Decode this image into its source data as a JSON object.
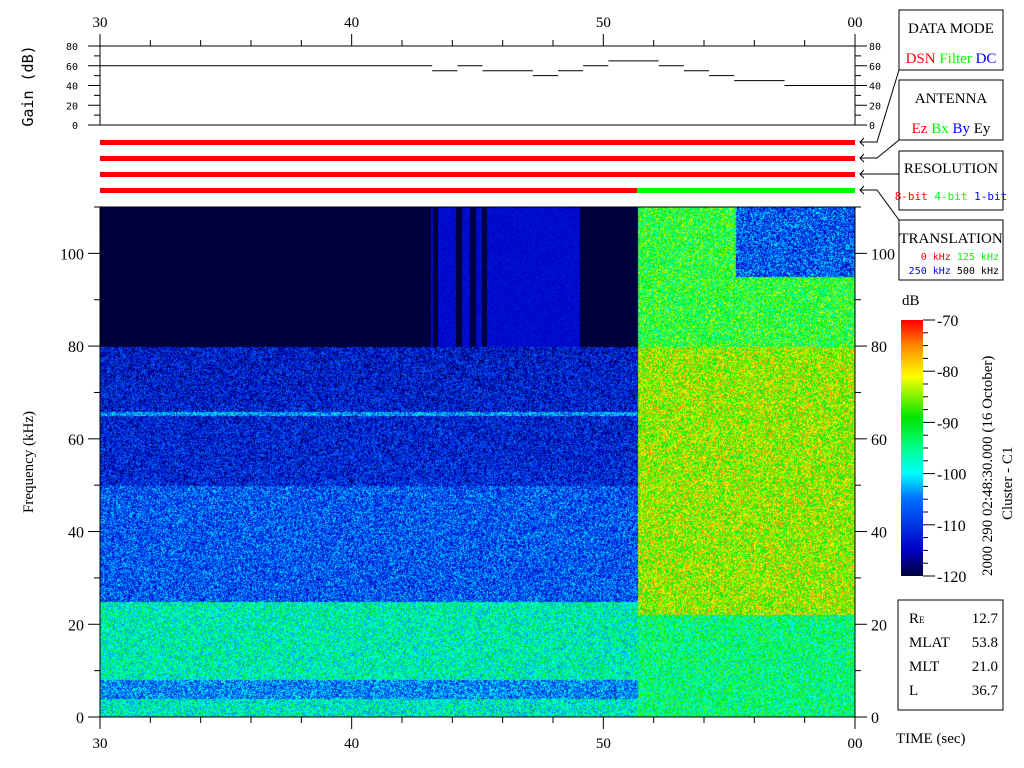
{
  "chart_data": {
    "type": "heatmap",
    "xlabel": "TIME (sec)",
    "ylabel": "Frequency (kHz)",
    "x_tick_labels": [
      "30",
      "40",
      "50",
      "00"
    ],
    "x_range": [
      30,
      60
    ],
    "ylim": [
      0,
      110
    ],
    "y_tick_labels": [
      "0",
      "20",
      "40",
      "60",
      "80",
      "100"
    ],
    "colorbar": {
      "label": "dB",
      "range": [
        -120,
        -70
      ],
      "tick_labels": [
        "-70",
        "-80",
        "-90",
        "-100",
        "-110",
        "-120"
      ],
      "colormap": "jet"
    },
    "gain_panel": {
      "ylabel": "Gain (dB)",
      "ylim": [
        0,
        80
      ],
      "y_tick_labels": [
        "0",
        "20",
        "40",
        "60",
        "80"
      ],
      "steps": [
        {
          "t0": 30,
          "t1": 43.2,
          "gain": 60
        },
        {
          "t0": 43.2,
          "t1": 44.2,
          "gain": 55
        },
        {
          "t0": 44.2,
          "t1": 45.2,
          "gain": 60
        },
        {
          "t0": 45.2,
          "t1": 47.2,
          "gain": 55
        },
        {
          "t0": 47.2,
          "t1": 48.2,
          "gain": 50
        },
        {
          "t0": 48.2,
          "t1": 49.2,
          "gain": 55
        },
        {
          "t0": 49.2,
          "t1": 50.2,
          "gain": 60
        },
        {
          "t0": 50.2,
          "t1": 52.2,
          "gain": 65
        },
        {
          "t0": 52.2,
          "t1": 53.2,
          "gain": 60
        },
        {
          "t0": 53.2,
          "t1": 54.2,
          "gain": 55
        },
        {
          "t0": 54.2,
          "t1": 55.2,
          "gain": 50
        },
        {
          "t0": 55.2,
          "t1": 57.2,
          "gain": 45
        },
        {
          "t0": 57.2,
          "t1": 60,
          "gain": 40
        }
      ]
    },
    "status_bars": [
      {
        "key": "data_mode",
        "segments": [
          {
            "t0": 30,
            "t1": 60,
            "color": "#ff0000"
          }
        ]
      },
      {
        "key": "antenna",
        "segments": [
          {
            "t0": 30,
            "t1": 60,
            "color": "#ff0000"
          }
        ]
      },
      {
        "key": "resolution",
        "segments": [
          {
            "t0": 30,
            "t1": 60,
            "color": "#ff0000"
          }
        ]
      },
      {
        "key": "translation",
        "segments": [
          {
            "t0": 30,
            "t1": 51.35,
            "color": "#ff0000"
          },
          {
            "t0": 51.35,
            "t1": 60,
            "color": "#00ff00"
          }
        ]
      }
    ],
    "mode_change_time": 51.35
  },
  "legend": {
    "data_mode": {
      "title": "DATA MODE",
      "items": [
        {
          "label": "DSN",
          "color": "#ff0000"
        },
        {
          "label": "Filter",
          "color": "#00ff00"
        },
        {
          "label": "DC",
          "color": "#0000ff"
        }
      ]
    },
    "antenna": {
      "title": "ANTENNA",
      "items": [
        {
          "label": "Ez",
          "color": "#ff0000"
        },
        {
          "label": "Bx",
          "color": "#00ff00"
        },
        {
          "label": "By",
          "color": "#0000ff"
        },
        {
          "label": "Ey",
          "color": "#000000"
        }
      ]
    },
    "resolution": {
      "title": "RESOLUTION",
      "items": [
        {
          "label": "8-bit",
          "color": "#ff0000"
        },
        {
          "label": "4-bit",
          "color": "#00ff00"
        },
        {
          "label": "1-bit",
          "color": "#0000ff"
        }
      ]
    },
    "translation": {
      "title": "TRANSLATION",
      "items": [
        {
          "label": "0 kHz",
          "color": "#ff0000"
        },
        {
          "label": "125 kHz",
          "color": "#00ff00"
        },
        {
          "label": "250 kHz",
          "color": "#0000ff"
        },
        {
          "label": "500 kHz",
          "color": "#000000"
        }
      ]
    }
  },
  "timestamp": "2000 290 02:48:30.000 (16 October)",
  "spacecraft": "Cluster - C1",
  "orbit": [
    {
      "label": "R",
      "sub": "E",
      "value": "12.7"
    },
    {
      "label": "MLAT",
      "value": "53.8"
    },
    {
      "label": "MLT",
      "value": "21.0"
    },
    {
      "label": "L",
      "value": "36.7"
    }
  ]
}
